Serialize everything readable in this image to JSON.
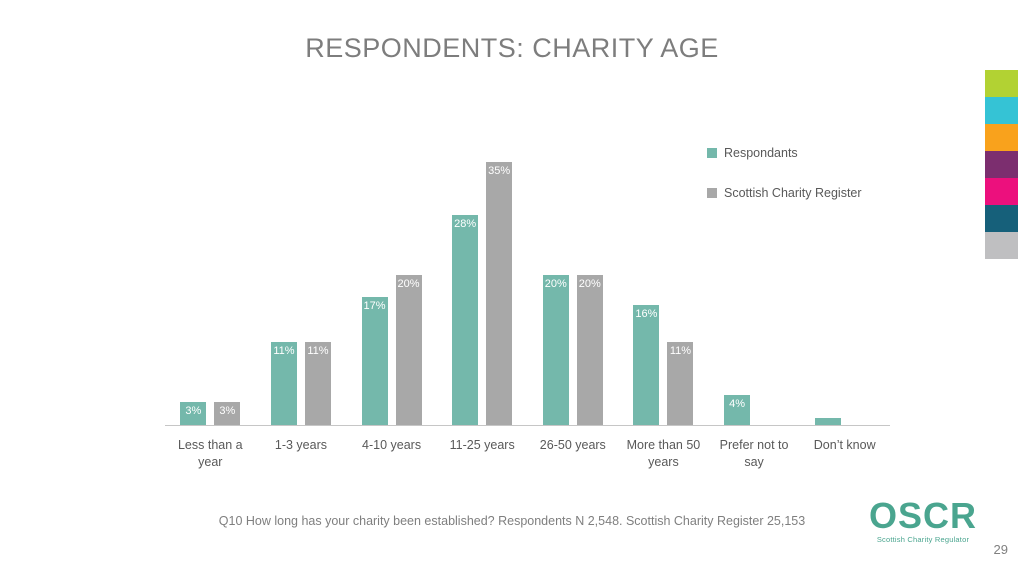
{
  "title": "RESPONDENTS: CHARITY AGE",
  "chart_data": {
    "type": "bar",
    "title": "RESPONDENTS: CHARITY AGE",
    "categories": [
      "Less than a year",
      "1-3 years",
      "4-10 years",
      "11-25 years",
      "26-50 years",
      "More than 50 years",
      "Prefer not to say",
      "Don’t know"
    ],
    "series": [
      {
        "name": "Respondants",
        "color": "#74b8ab",
        "values": [
          3,
          11,
          17,
          28,
          20,
          16,
          4,
          1
        ],
        "labels": [
          "3%",
          "11%",
          "17%",
          "28%",
          "20%",
          "16%",
          "4%",
          ""
        ]
      },
      {
        "name": "Scottish Charity Register",
        "color": "#a8a8a8",
        "values": [
          3,
          11,
          20,
          35,
          20,
          11,
          null,
          null
        ],
        "labels": [
          "3%",
          "11%",
          "20%",
          "35%",
          "20%",
          "11%",
          "",
          ""
        ]
      }
    ],
    "ylim": [
      0,
      35
    ],
    "xlabel": "",
    "ylabel": "",
    "grid": false,
    "legend_position": "right",
    "value_label_color": "#ffffff"
  },
  "legend_note": "legend rendered from chart_data.series",
  "footer": {
    "note": "Q10 How long has your charity been established? Respondents N 2,548. Scottish Charity Register 25,153"
  },
  "branding": {
    "logo": "OSCR",
    "tagline": "Scottish Charity Regulator",
    "logo_color": "#4aa58f"
  },
  "page_number": "29",
  "color_strip": [
    "#b2d233",
    "#35c3d5",
    "#f9a21c",
    "#7c2e6f",
    "#ec107d",
    "#16607a",
    "#bfbfc1"
  ]
}
